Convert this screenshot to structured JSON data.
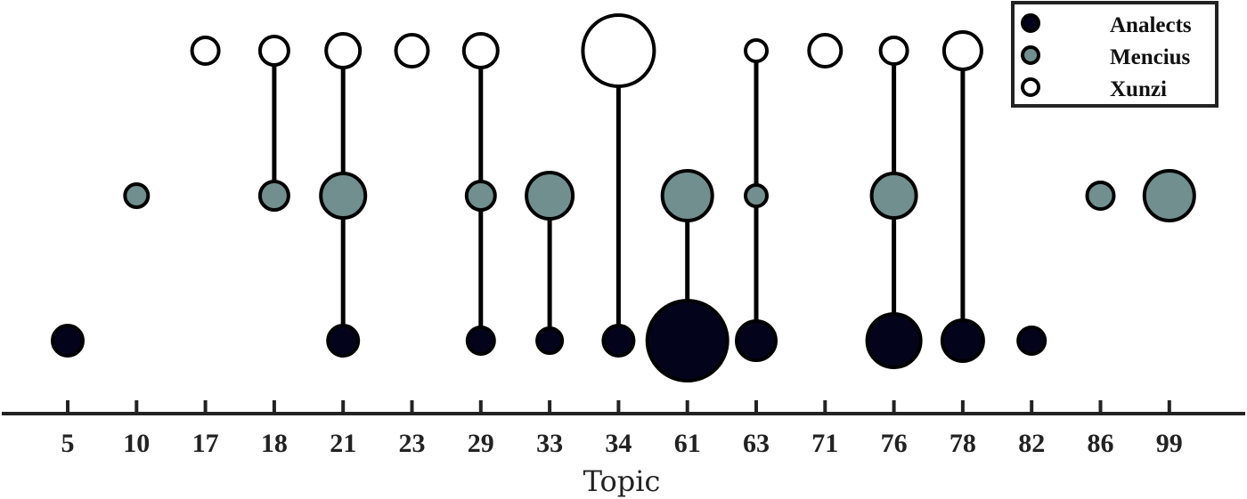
{
  "chart_data": {
    "type": "scatter",
    "subtype": "bubble-stem",
    "title": "",
    "xlabel": "Topic",
    "ylabel": "",
    "categories": [
      "5",
      "10",
      "17",
      "18",
      "21",
      "23",
      "29",
      "33",
      "34",
      "61",
      "63",
      "71",
      "76",
      "78",
      "82",
      "86",
      "99"
    ],
    "grid": false,
    "legend_position": "upper right",
    "legend": [
      "Analects",
      "Mencius",
      "Xunzi"
    ],
    "series": [
      {
        "name": "Analects",
        "color": "#03041c",
        "row": 0,
        "points": [
          {
            "topic": "5",
            "radius": 17
          },
          {
            "topic": "21",
            "radius": 17
          },
          {
            "topic": "29",
            "radius": 15
          },
          {
            "topic": "33",
            "radius": 14
          },
          {
            "topic": "34",
            "radius": 17
          },
          {
            "topic": "61",
            "radius": 45
          },
          {
            "topic": "63",
            "radius": 22
          },
          {
            "topic": "76",
            "radius": 30
          },
          {
            "topic": "78",
            "radius": 23
          },
          {
            "topic": "82",
            "radius": 15
          }
        ]
      },
      {
        "name": "Mencius",
        "color": "#718f8e",
        "row": 1,
        "points": [
          {
            "topic": "10",
            "radius": 13
          },
          {
            "topic": "18",
            "radius": 16
          },
          {
            "topic": "21",
            "radius": 25
          },
          {
            "topic": "29",
            "radius": 16
          },
          {
            "topic": "33",
            "radius": 26
          },
          {
            "topic": "61",
            "radius": 28
          },
          {
            "topic": "63",
            "radius": 12
          },
          {
            "topic": "76",
            "radius": 25
          },
          {
            "topic": "86",
            "radius": 15
          },
          {
            "topic": "99",
            "radius": 28
          }
        ]
      },
      {
        "name": "Xunzi",
        "color": "#ffffff",
        "row": 2,
        "points": [
          {
            "topic": "17",
            "radius": 15
          },
          {
            "topic": "18",
            "radius": 16
          },
          {
            "topic": "21",
            "radius": 19
          },
          {
            "topic": "23",
            "radius": 18
          },
          {
            "topic": "29",
            "radius": 19
          },
          {
            "topic": "34",
            "radius": 40
          },
          {
            "topic": "63",
            "radius": 12
          },
          {
            "topic": "71",
            "radius": 18
          },
          {
            "topic": "76",
            "radius": 15
          },
          {
            "topic": "78",
            "radius": 21
          }
        ]
      }
    ],
    "connections": [
      {
        "topic": "18",
        "from": "Mencius",
        "to": "Xunzi"
      },
      {
        "topic": "21",
        "from": "Analects",
        "to": "Xunzi"
      },
      {
        "topic": "29",
        "from": "Analects",
        "to": "Xunzi"
      },
      {
        "topic": "33",
        "from": "Analects",
        "to": "Mencius"
      },
      {
        "topic": "34",
        "from": "Analects",
        "to": "Xunzi"
      },
      {
        "topic": "61",
        "from": "Analects",
        "to": "Mencius"
      },
      {
        "topic": "63",
        "from": "Analects",
        "to": "Xunzi"
      },
      {
        "topic": "76",
        "from": "Analects",
        "to": "Xunzi"
      },
      {
        "topic": "78",
        "from": "Analects",
        "to": "Xunzi"
      }
    ]
  }
}
